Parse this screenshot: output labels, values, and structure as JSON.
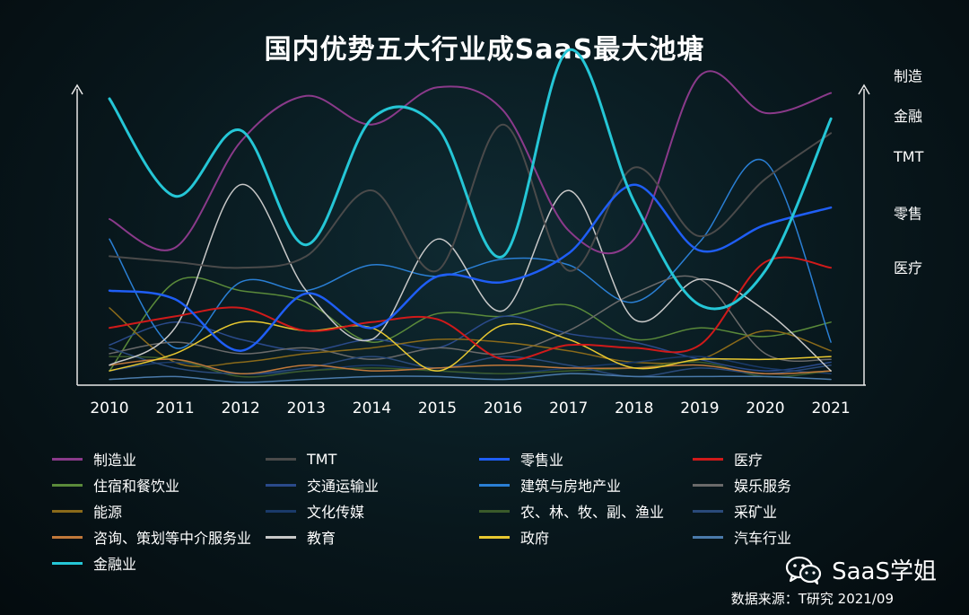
{
  "chart_data": {
    "type": "line",
    "title": "国内优势五大行业成SaaS最大池塘",
    "x": [
      "2010",
      "2011",
      "2012",
      "2013",
      "2014",
      "2015",
      "2016",
      "2017",
      "2018",
      "2019",
      "2020",
      "2021"
    ],
    "ylim": [
      0,
      100
    ],
    "y_ticks": "none",
    "grid": false,
    "smooth": true,
    "legend_placement": "bottom",
    "series": [
      {
        "name": "制造业",
        "color": "#8a3a8a",
        "width": 2,
        "values": [
          58,
          48,
          85,
          101,
          91,
          104,
          96,
          54,
          51,
          108,
          95,
          102
        ]
      },
      {
        "name": "TMT",
        "color": "#4a4a4a",
        "width": 2,
        "values": [
          45,
          43,
          41,
          45,
          68,
          40,
          91,
          40,
          76,
          52,
          72,
          88
        ]
      },
      {
        "name": "零售业",
        "color": "#1f5ef5",
        "width": 2.5,
        "values": [
          33,
          30,
          12,
          32,
          20,
          38,
          36,
          46,
          70,
          47,
          56,
          62
        ]
      },
      {
        "name": "医疗",
        "color": "#d01a1a",
        "width": 2,
        "values": [
          20,
          24,
          27,
          19,
          22,
          23,
          9,
          14,
          13,
          14,
          43,
          41
        ]
      },
      {
        "name": "住宿和餐饮业",
        "color": "#5a8a3a",
        "width": 1.5,
        "values": [
          5,
          36,
          33,
          29,
          15,
          25,
          24,
          28,
          16,
          20,
          17,
          22
        ]
      },
      {
        "name": "交通运输业",
        "color": "#2a4a8a",
        "width": 1.5,
        "values": [
          14,
          22,
          16,
          12,
          16,
          13,
          24,
          18,
          15,
          9,
          5,
          8
        ]
      },
      {
        "name": "建筑与房地产业",
        "color": "#2a7fd4",
        "width": 1.5,
        "values": [
          51,
          13,
          36,
          33,
          42,
          38,
          44,
          42,
          29,
          50,
          78,
          15
        ]
      },
      {
        "name": "娱乐服务",
        "color": "#6a6a6a",
        "width": 1.5,
        "values": [
          11,
          15,
          11,
          13,
          9,
          13,
          11,
          19,
          32,
          37,
          11,
          9
        ]
      },
      {
        "name": "能源",
        "color": "#8a6a1a",
        "width": 1.5,
        "values": [
          27,
          8,
          8,
          11,
          13,
          16,
          15,
          12,
          8,
          9,
          19,
          12
        ]
      },
      {
        "name": "文化传媒",
        "color": "#1a3a6a",
        "width": 1.5,
        "values": [
          5,
          8,
          4,
          5,
          7,
          5,
          4,
          6,
          8,
          10,
          6,
          4
        ]
      },
      {
        "name": "农、林、牧、副、渔业",
        "color": "#3a5a2a",
        "width": 1.5,
        "values": [
          10,
          9,
          3,
          5,
          6,
          5,
          4,
          5,
          6,
          8,
          3,
          5
        ]
      },
      {
        "name": "采矿业",
        "color": "#2a4a7a",
        "width": 1.5,
        "values": [
          13,
          6,
          4,
          6,
          10,
          6,
          10,
          7,
          3,
          6,
          4,
          7
        ]
      },
      {
        "name": "咨询、策划等中介服务业",
        "color": "#c0783a",
        "width": 1.5,
        "values": [
          7,
          9,
          4,
          7,
          5,
          6,
          7,
          6,
          6,
          7,
          4,
          5
        ]
      },
      {
        "name": "教育",
        "color": "#c8c8c8",
        "width": 1.5,
        "values": [
          7,
          20,
          70,
          33,
          16,
          51,
          26,
          68,
          23,
          37,
          26,
          5
        ]
      },
      {
        "name": "政府",
        "color": "#e8c830",
        "width": 1.5,
        "values": [
          5,
          11,
          22,
          19,
          20,
          5,
          21,
          16,
          6,
          9,
          9,
          10
        ]
      },
      {
        "name": "汽车行业",
        "color": "#4a7aaa",
        "width": 1.5,
        "values": [
          2,
          3,
          1,
          2,
          3,
          3,
          2,
          4,
          3,
          3,
          3,
          2
        ]
      },
      {
        "name": "金融业",
        "color": "#25c6d6",
        "width": 3,
        "values": [
          100,
          66,
          89,
          49,
          93,
          90,
          45,
          117,
          64,
          28,
          40,
          93
        ]
      }
    ],
    "right_labels": [
      {
        "text": "制造",
        "value": 108
      },
      {
        "text": "金融",
        "value": 94
      },
      {
        "text": "TMT",
        "value": 80
      },
      {
        "text": "零售",
        "value": 60
      },
      {
        "text": "医疗",
        "value": 41
      }
    ]
  },
  "watermark": {
    "icon": "wechat-icon",
    "text": "SaaS学姐"
  },
  "source": "数据来源：T研究 2021/09"
}
